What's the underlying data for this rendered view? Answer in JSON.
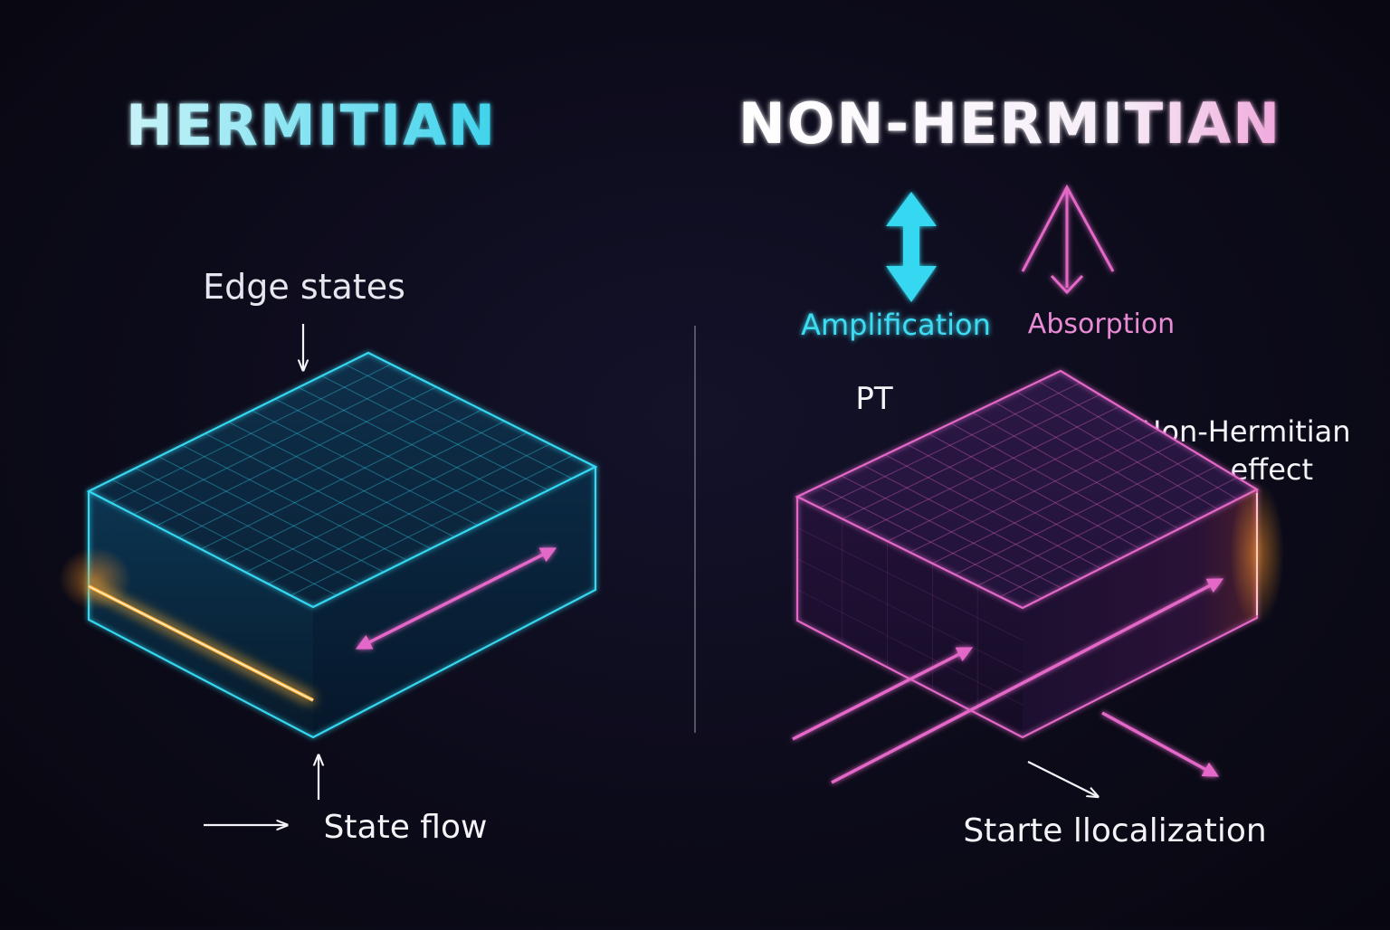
{
  "left": {
    "title": "HERMITIAN",
    "edge_label": "Edge states",
    "flow_label": "State flow"
  },
  "right": {
    "title": "NON-HERMITIAN",
    "amplification_label": "Amplification",
    "absorption_label": "Absorption",
    "pt_label": "PT",
    "skin_label_line1": "Non-Hermitian",
    "skin_label_line2": "skin effect",
    "localization_label": "Starte llocalization"
  },
  "colors": {
    "cyan": "#35d8f0",
    "pink": "#e467c8",
    "orange": "#ffb23a",
    "white": "#f4f4f8"
  }
}
